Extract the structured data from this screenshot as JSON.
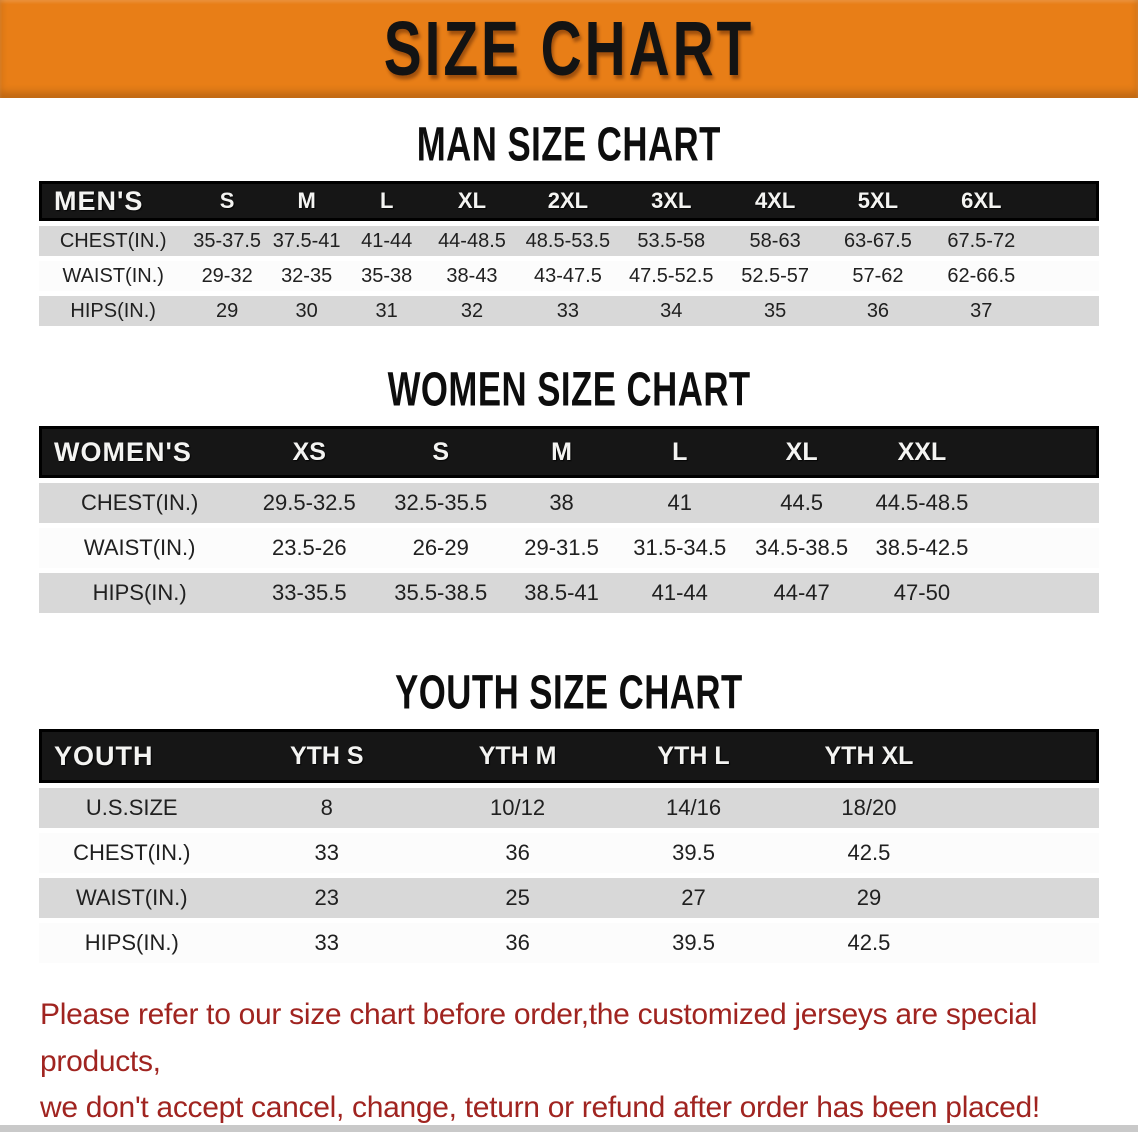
{
  "colors": {
    "banner_orange": "#e87e17",
    "header_bar_black": "#161616",
    "stripe_gray": "#d8d8d8",
    "row_white": "#fcfcfc",
    "disclaimer_red": "#a02420"
  },
  "banner": {
    "title": "SIZE CHART"
  },
  "men": {
    "heading": "MAN SIZE CHART",
    "label": "MEN'S",
    "columns": [
      "S",
      "M",
      "L",
      "XL",
      "2XL",
      "3XL",
      "4XL",
      "5XL",
      "6XL"
    ],
    "rows": [
      {
        "label": "CHEST(IN.)",
        "values": [
          "35-37.5",
          "37.5-41",
          "41-44",
          "44-48.5",
          "48.5-53.5",
          "53.5-58",
          "58-63",
          "63-67.5",
          "67.5-72"
        ]
      },
      {
        "label": "WAIST(IN.)",
        "values": [
          "29-32",
          "32-35",
          "35-38",
          "38-43",
          "43-47.5",
          "47.5-52.5",
          "52.5-57",
          "57-62",
          "62-66.5"
        ]
      },
      {
        "label": "HIPS(IN.)",
        "values": [
          "29",
          "30",
          "31",
          "32",
          "33",
          "34",
          "35",
          "36",
          "37"
        ]
      }
    ]
  },
  "women": {
    "heading": "WOMEN SIZE CHART",
    "label": "WOMEN'S",
    "columns": [
      "XS",
      "S",
      "M",
      "L",
      "XL",
      "XXL"
    ],
    "rows": [
      {
        "label": "CHEST(IN.)",
        "values": [
          "29.5-32.5",
          "32.5-35.5",
          "38",
          "41",
          "44.5",
          "44.5-48.5"
        ]
      },
      {
        "label": "WAIST(IN.)",
        "values": [
          "23.5-26",
          "26-29",
          "29-31.5",
          "31.5-34.5",
          "34.5-38.5",
          "38.5-42.5"
        ]
      },
      {
        "label": "HIPS(IN.)",
        "values": [
          "33-35.5",
          "35.5-38.5",
          "38.5-41",
          "41-44",
          "44-47",
          "47-50"
        ]
      }
    ]
  },
  "youth": {
    "heading": "YOUTH SIZE CHART",
    "label": "YOUTH",
    "columns": [
      "YTH S",
      "YTH M",
      "YTH L",
      "YTH XL"
    ],
    "rows": [
      {
        "label": "U.S.SIZE",
        "values": [
          "8",
          "10/12",
          "14/16",
          "18/20"
        ]
      },
      {
        "label": "CHEST(IN.)",
        "values": [
          "33",
          "36",
          "39.5",
          "42.5"
        ]
      },
      {
        "label": "WAIST(IN.)",
        "values": [
          "23",
          "25",
          "27",
          "29"
        ]
      },
      {
        "label": "HIPS(IN.)",
        "values": [
          "33",
          "36",
          "39.5",
          "42.5"
        ]
      }
    ]
  },
  "disclaimer": {
    "line1": "Please refer to our size chart before order,the customized jerseys are special products,",
    "line2": "we don't accept cancel, change, teturn or refund after order has been placed!"
  }
}
